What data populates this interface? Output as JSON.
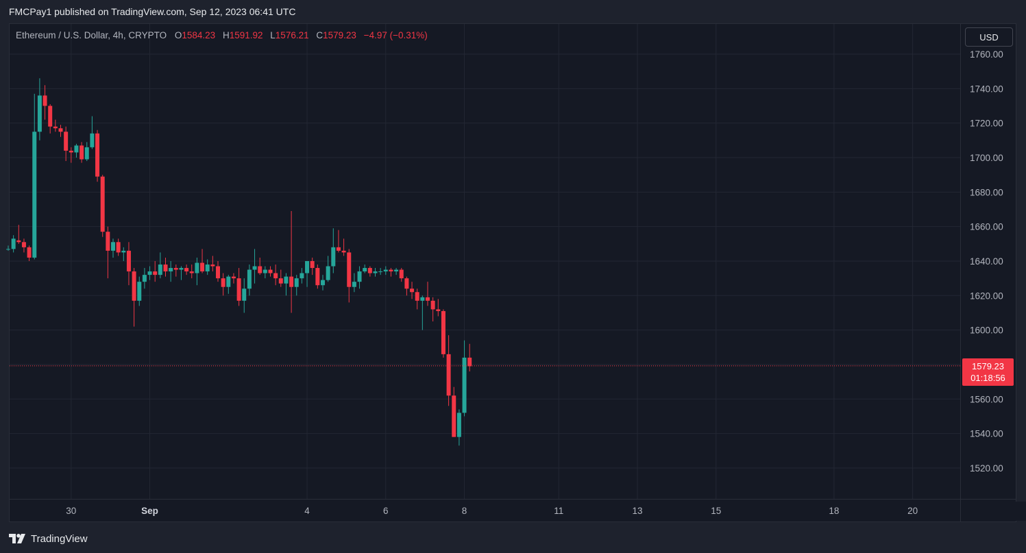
{
  "header": {
    "published": "FMCPay1 published on TradingView.com, Sep 12, 2023 06:41 UTC"
  },
  "legend": {
    "symbol": "Ethereum / U.S. Dollar, 4h, CRYPTO",
    "o_label": "O",
    "o_value": "1584.23",
    "h_label": "H",
    "h_value": "1591.92",
    "l_label": "L",
    "l_value": "1576.21",
    "c_label": "C",
    "c_value": "1579.23",
    "change": "−4.97 (−0.31%)"
  },
  "currency_button": "USD",
  "last_price": {
    "price": "1579.23",
    "countdown": "01:18:56"
  },
  "footer": {
    "brand": "TradingView",
    "logo_icon": "tradingview-logo-icon"
  },
  "colors": {
    "up": "#26a69a",
    "down": "#f23645",
    "background": "#151924",
    "grid": "#232733",
    "text": "#b2b5be"
  },
  "chart_data": {
    "type": "candlestick",
    "title": "Ethereum / U.S. Dollar, 4h, CRYPTO",
    "grid": true,
    "ylim": [
      1508,
      1772
    ],
    "y_ticks": [
      "1760.00",
      "1740.00",
      "1720.00",
      "1700.00",
      "1680.00",
      "1660.00",
      "1640.00",
      "1620.00",
      "1600.00",
      "1580.00",
      "1560.00",
      "1540.00",
      "1520.00"
    ],
    "x_ticks": [
      {
        "label": "30",
        "bar": 12,
        "bold": false
      },
      {
        "label": "Sep",
        "bar": 27,
        "bold": true
      },
      {
        "label": "4",
        "bar": 57,
        "bold": false
      },
      {
        "label": "6",
        "bar": 72,
        "bold": false
      },
      {
        "label": "8",
        "bar": 87,
        "bold": false
      },
      {
        "label": "11",
        "bar": 105,
        "bold": false
      },
      {
        "label": "13",
        "bar": 120,
        "bold": false
      },
      {
        "label": "15",
        "bar": 135,
        "bold": false
      },
      {
        "label": "18",
        "bar": 157.5,
        "bold": false
      },
      {
        "label": "20",
        "bar": 172.5,
        "bold": false
      }
    ],
    "last_price": 1579.23,
    "candles": [
      [
        1647,
        1649,
        1646,
        1647
      ],
      [
        1647,
        1655,
        1645,
        1653
      ],
      [
        1652,
        1661,
        1650,
        1651
      ],
      [
        1651,
        1653,
        1645,
        1648
      ],
      [
        1648,
        1649,
        1640,
        1642
      ],
      [
        1642,
        1737,
        1641,
        1715
      ],
      [
        1715,
        1746,
        1710,
        1736
      ],
      [
        1736,
        1742,
        1722,
        1730
      ],
      [
        1730,
        1731,
        1714,
        1718
      ],
      [
        1718,
        1722,
        1715,
        1717
      ],
      [
        1717,
        1719,
        1712,
        1715
      ],
      [
        1715,
        1718,
        1698,
        1704
      ],
      [
        1704,
        1706,
        1697,
        1703
      ],
      [
        1703,
        1708,
        1700,
        1707
      ],
      [
        1707,
        1709,
        1697,
        1699
      ],
      [
        1699,
        1709,
        1698,
        1706
      ],
      [
        1706,
        1724,
        1705,
        1714
      ],
      [
        1714,
        1716,
        1686,
        1689
      ],
      [
        1689,
        1690,
        1654,
        1657
      ],
      [
        1657,
        1660,
        1630,
        1646
      ],
      [
        1646,
        1653,
        1642,
        1651
      ],
      [
        1651,
        1653,
        1643,
        1645
      ],
      [
        1645,
        1648,
        1640,
        1646
      ],
      [
        1646,
        1651,
        1626,
        1634
      ],
      [
        1634,
        1636,
        1602,
        1617
      ],
      [
        1617,
        1631,
        1614,
        1628
      ],
      [
        1628,
        1636,
        1624,
        1632
      ],
      [
        1632,
        1637,
        1629,
        1634
      ],
      [
        1634,
        1640,
        1628,
        1632
      ],
      [
        1632,
        1645,
        1630,
        1638
      ],
      [
        1638,
        1642,
        1631,
        1634
      ],
      [
        1634,
        1640,
        1628,
        1636
      ],
      [
        1636,
        1638,
        1631,
        1635
      ],
      [
        1635,
        1637,
        1629,
        1636
      ],
      [
        1636,
        1638,
        1632,
        1634
      ],
      [
        1634,
        1638,
        1630,
        1633
      ],
      [
        1633,
        1642,
        1626,
        1639
      ],
      [
        1639,
        1647,
        1633,
        1634
      ],
      [
        1634,
        1641,
        1632,
        1638
      ],
      [
        1638,
        1643,
        1634,
        1637
      ],
      [
        1637,
        1640,
        1628,
        1630
      ],
      [
        1630,
        1633,
        1620,
        1625
      ],
      [
        1625,
        1632,
        1621,
        1631
      ],
      [
        1631,
        1633,
        1627,
        1630
      ],
      [
        1630,
        1636,
        1614,
        1617
      ],
      [
        1617,
        1630,
        1610,
        1624
      ],
      [
        1624,
        1638,
        1620,
        1635
      ],
      [
        1635,
        1647,
        1627,
        1637
      ],
      [
        1637,
        1642,
        1632,
        1633
      ],
      [
        1633,
        1637,
        1630,
        1635
      ],
      [
        1635,
        1637,
        1631,
        1633
      ],
      [
        1633,
        1638,
        1626,
        1630
      ],
      [
        1630,
        1635,
        1625,
        1627
      ],
      [
        1627,
        1633,
        1620,
        1631
      ],
      [
        1631,
        1669,
        1610,
        1625
      ],
      [
        1625,
        1632,
        1620,
        1630
      ],
      [
        1630,
        1636,
        1627,
        1633
      ],
      [
        1633,
        1640,
        1625,
        1640
      ],
      [
        1640,
        1642,
        1632,
        1636
      ],
      [
        1636,
        1638,
        1624,
        1626
      ],
      [
        1626,
        1632,
        1623,
        1629
      ],
      [
        1629,
        1643,
        1628,
        1637
      ],
      [
        1637,
        1659,
        1633,
        1648
      ],
      [
        1648,
        1658,
        1645,
        1646
      ],
      [
        1646,
        1653,
        1643,
        1645
      ],
      [
        1645,
        1647,
        1616,
        1625
      ],
      [
        1625,
        1633,
        1622,
        1628
      ],
      [
        1628,
        1637,
        1624,
        1634
      ],
      [
        1634,
        1638,
        1633,
        1636
      ],
      [
        1636,
        1637,
        1631,
        1633
      ],
      [
        1633,
        1636,
        1631,
        1634
      ],
      [
        1634,
        1636,
        1632,
        1634
      ],
      [
        1634,
        1637,
        1632,
        1635
      ],
      [
        1635,
        1636,
        1631,
        1634
      ],
      [
        1634,
        1636,
        1632,
        1635
      ],
      [
        1635,
        1636,
        1628,
        1630
      ],
      [
        1630,
        1631,
        1620,
        1624
      ],
      [
        1624,
        1628,
        1618,
        1622
      ],
      [
        1622,
        1624,
        1612,
        1617
      ],
      [
        1617,
        1620,
        1600,
        1619
      ],
      [
        1619,
        1628,
        1614,
        1617
      ],
      [
        1617,
        1619,
        1605,
        1612
      ],
      [
        1612,
        1618,
        1608,
        1611
      ],
      [
        1611,
        1612,
        1584,
        1586
      ],
      [
        1586,
        1597,
        1556,
        1562
      ],
      [
        1562,
        1567,
        1538,
        1538
      ],
      [
        1538,
        1554,
        1533,
        1552
      ],
      [
        1552,
        1594,
        1550,
        1584
      ],
      [
        1584,
        1592,
        1576,
        1579
      ]
    ]
  }
}
